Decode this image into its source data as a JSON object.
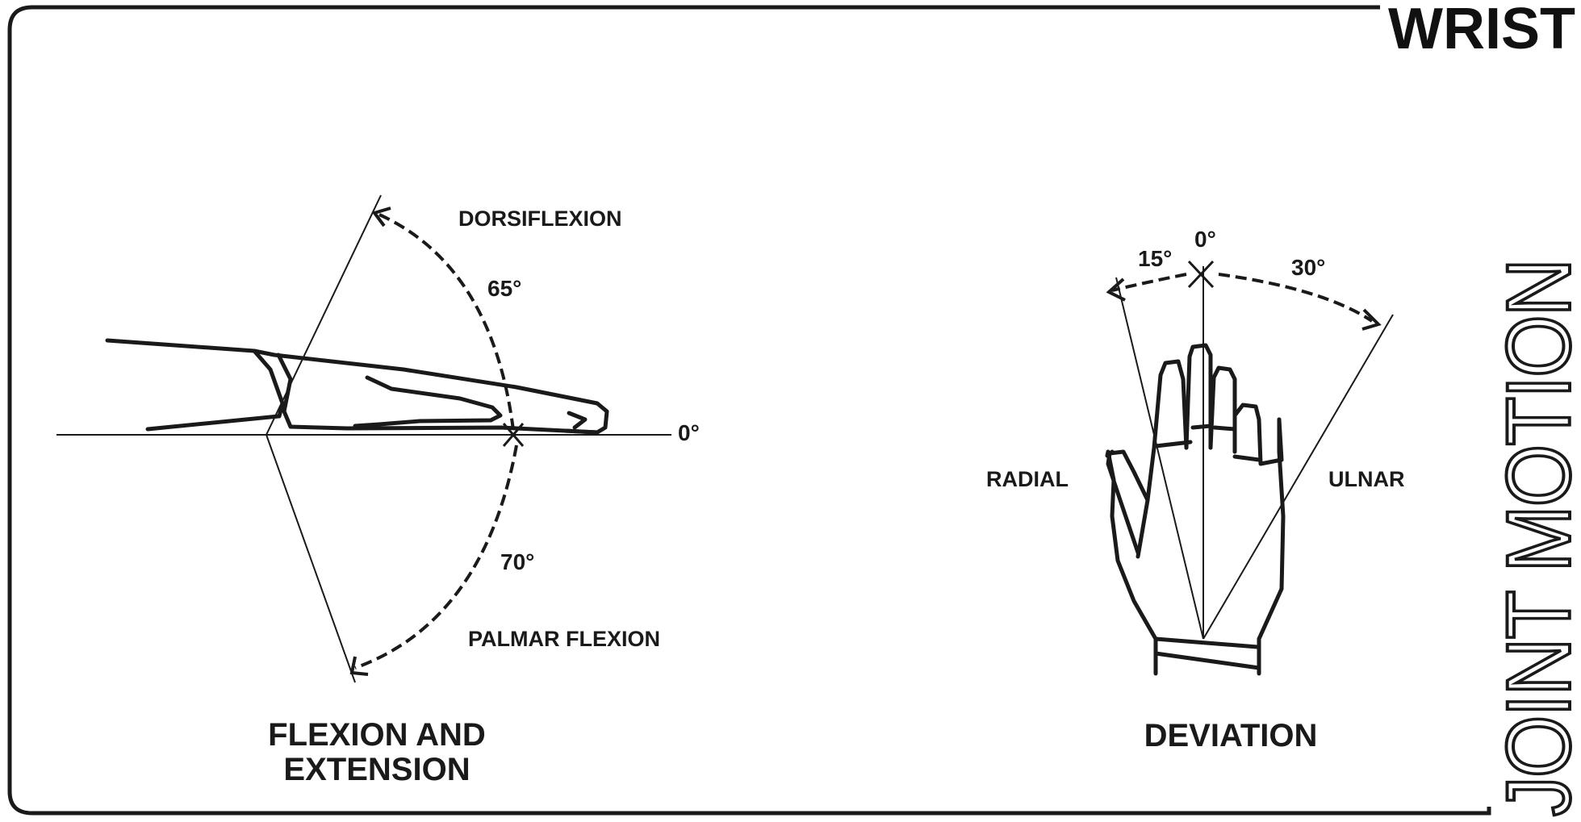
{
  "header": {
    "title": "WRIST"
  },
  "side_title": "JOINT MOTION",
  "flexion_panel": {
    "caption_line1": "FLEXION AND",
    "caption_line2": "EXTENSION",
    "dorsiflexion_label": "DORSIFLEXION",
    "dorsiflexion_angle": "65°",
    "palmar_flexion_label": "PALMAR FLEXION",
    "palmar_flexion_angle": "70°",
    "neutral_angle": "0°"
  },
  "deviation_panel": {
    "caption": "DEVIATION",
    "radial_label": "RADIAL",
    "radial_angle": "15°",
    "ulnar_label": "ULNAR",
    "ulnar_angle": "30°",
    "neutral_angle": "0°"
  },
  "colors": {
    "ink": "#1a1a1a",
    "background": "#ffffff"
  }
}
